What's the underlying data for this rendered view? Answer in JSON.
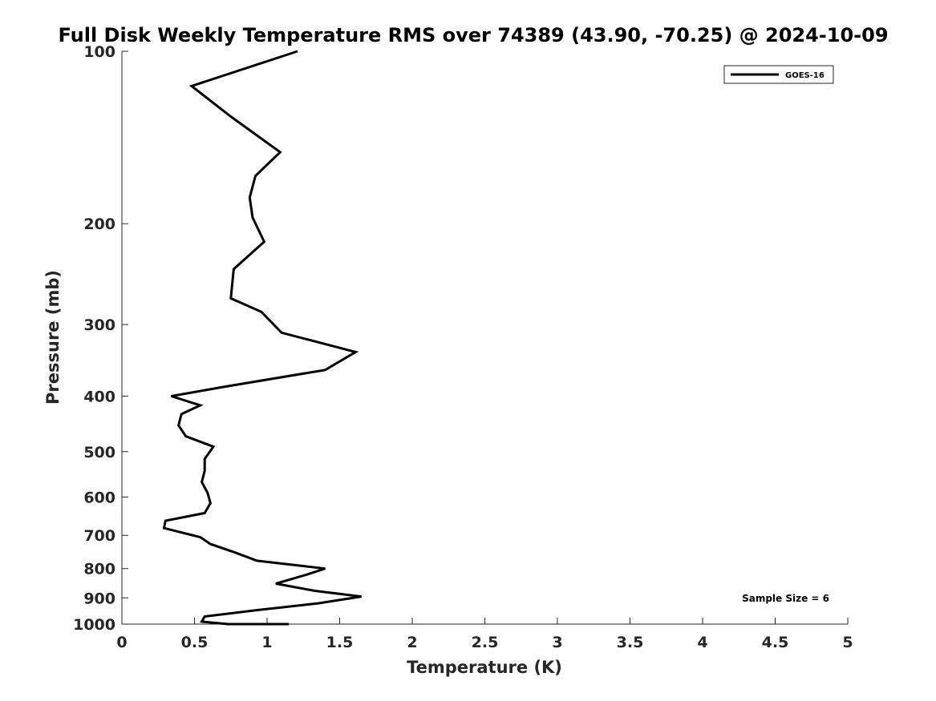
{
  "chart_data": {
    "type": "line",
    "title": "Full Disk Weekly Temperature RMS over 74389 (43.90, -70.25) @ 2024-10-09",
    "xlabel": "Temperature (K)",
    "ylabel": "Pressure (mb)",
    "xlim": [
      0,
      5
    ],
    "ylim": [
      100,
      1000
    ],
    "y_scale": "log",
    "y_reversed": true,
    "x_ticks": [
      "0",
      "0.5",
      "1",
      "1.5",
      "2",
      "2.5",
      "3",
      "3.5",
      "4",
      "4.5",
      "5"
    ],
    "y_ticks": [
      "100",
      "200",
      "300",
      "400",
      "500",
      "600",
      "700",
      "800",
      "900",
      "1000"
    ],
    "grid": false,
    "legend_position": "top-right",
    "series": [
      {
        "name": "GOES-16",
        "color": "#000000",
        "x": [
          1.21,
          0.48,
          0.75,
          1.09,
          0.92,
          0.88,
          0.9,
          0.98,
          0.77,
          0.75,
          0.96,
          1.1,
          1.61,
          1.4,
          0.71,
          0.34,
          0.54,
          0.41,
          0.39,
          0.44,
          0.63,
          0.57,
          0.57,
          0.55,
          0.59,
          0.61,
          0.57,
          0.3,
          0.29,
          0.54,
          0.61,
          0.78,
          0.93,
          1.4,
          1.27,
          1.06,
          1.33,
          1.65,
          1.35,
          0.94,
          0.57,
          0.55,
          0.73,
          1.0,
          1.01,
          1.15
        ],
        "y": [
          100,
          115,
          130,
          150,
          165,
          180,
          195,
          215,
          240,
          270,
          285,
          310,
          335,
          360,
          385,
          400,
          415,
          430,
          450,
          470,
          490,
          515,
          540,
          565,
          590,
          615,
          640,
          660,
          680,
          705,
          725,
          750,
          775,
          800,
          820,
          850,
          875,
          895,
          920,
          945,
          970,
          990,
          1000,
          1000,
          1000,
          1000
        ]
      }
    ],
    "annotations": [
      {
        "text": "Sample Size = 6",
        "position": "bottom-right"
      }
    ]
  }
}
